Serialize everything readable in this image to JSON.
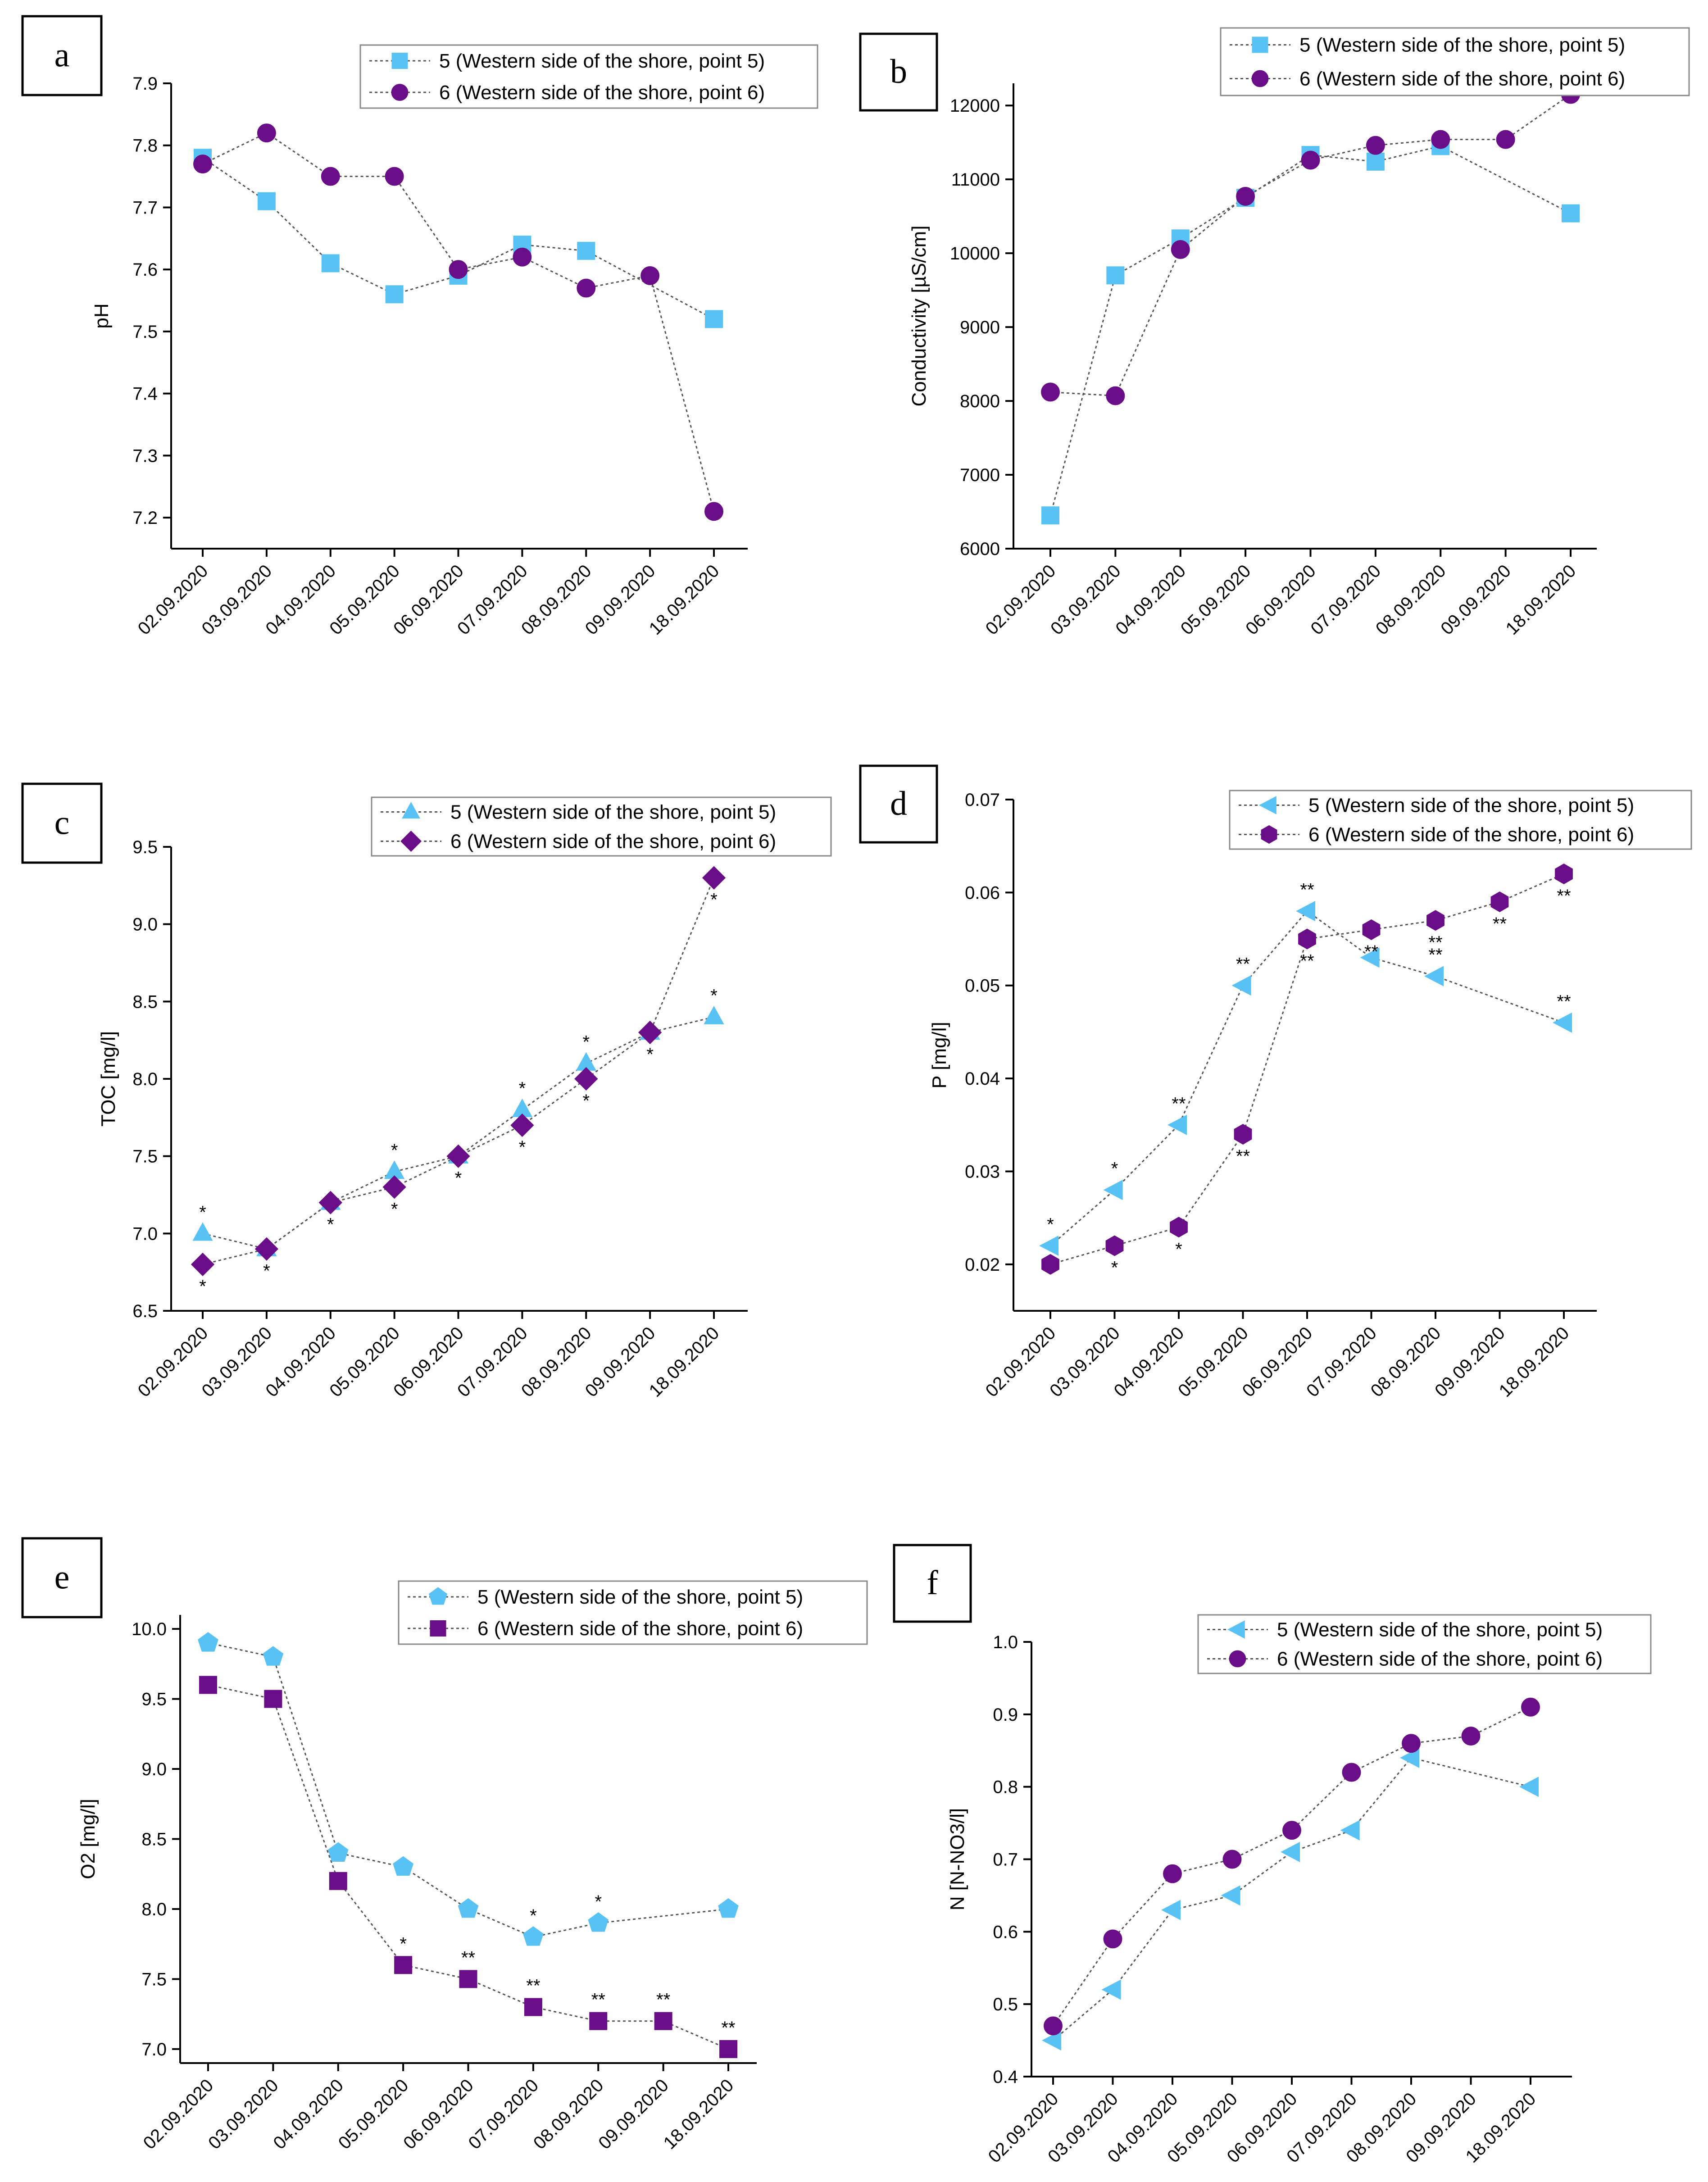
{
  "colors": {
    "series5": "#58c2f5",
    "series6": "#6a0d88",
    "line": "#555555",
    "axis": "#000000"
  },
  "chart_data": [
    {
      "id": "a",
      "panel_label": "a",
      "type": "line",
      "title": "",
      "xlabel": "",
      "ylabel": "pH",
      "categories": [
        "02.09.2020",
        "03.09.2020",
        "04.09.2020",
        "05.09.2020",
        "06.09.2020",
        "07.09.2020",
        "08.09.2020",
        "09.09.2020",
        "18.09.2020"
      ],
      "ylim": [
        7.15,
        7.9
      ],
      "yticks": [
        7.2,
        7.3,
        7.4,
        7.5,
        7.6,
        7.7,
        7.8,
        7.9
      ],
      "ytick_labels": [
        "7.2",
        "7.3",
        "7.4",
        "7.5",
        "7.6",
        "7.7",
        "7.8",
        "7.9"
      ],
      "legend_position": "top-right",
      "series": [
        {
          "name": "5 (Western side of the shore, point 5)",
          "marker": "square",
          "color": "#58c2f5",
          "values": [
            7.78,
            7.71,
            7.61,
            7.56,
            7.59,
            7.64,
            7.63,
            null,
            7.52
          ]
        },
        {
          "name": "6 (Western side of the shore, point 6)",
          "marker": "circle",
          "color": "#6a0d88",
          "values": [
            7.77,
            7.82,
            7.75,
            7.75,
            7.6,
            7.62,
            7.57,
            7.59,
            7.21
          ]
        }
      ]
    },
    {
      "id": "b",
      "panel_label": "b",
      "type": "line",
      "title": "",
      "xlabel": "",
      "ylabel": "Conductivity [µS/cm]",
      "categories": [
        "02.09.2020",
        "03.09.2020",
        "04.09.2020",
        "05.09.2020",
        "06.09.2020",
        "07.09.2020",
        "08.09.2020",
        "09.09.2020",
        "18.09.2020"
      ],
      "ylim": [
        6000,
        12300
      ],
      "yticks": [
        6000,
        7000,
        8000,
        9000,
        10000,
        11000,
        12000
      ],
      "ytick_labels": [
        "6000",
        "7000",
        "8000",
        "9000",
        "10000",
        "11000",
        "12000"
      ],
      "legend_position": "top-right",
      "series": [
        {
          "name": "5 (Western side of the shore, point 5)",
          "marker": "square",
          "color": "#58c2f5",
          "values": [
            6450,
            9700,
            10200,
            10750,
            11330,
            11240,
            11450,
            null,
            10540
          ]
        },
        {
          "name": "6 (Western side of the shore, point 6)",
          "marker": "circle",
          "color": "#6a0d88",
          "values": [
            8120,
            8070,
            10050,
            10770,
            11260,
            11460,
            11540,
            11540,
            12150
          ]
        }
      ]
    },
    {
      "id": "c",
      "panel_label": "c",
      "type": "line",
      "title": "",
      "xlabel": "",
      "ylabel": "TOC [mg/l]",
      "categories": [
        "02.09.2020",
        "03.09.2020",
        "04.09.2020",
        "05.09.2020",
        "06.09.2020",
        "07.09.2020",
        "08.09.2020",
        "09.09.2020",
        "18.09.2020"
      ],
      "ylim": [
        6.5,
        9.5
      ],
      "yticks": [
        6.5,
        7.0,
        7.5,
        8.0,
        8.5,
        9.0,
        9.5
      ],
      "ytick_labels": [
        "6.5",
        "7.0",
        "7.5",
        "8.0",
        "8.5",
        "9.0",
        "9.5"
      ],
      "legend_position": "top-right",
      "series": [
        {
          "name": "5 (Western side of the shore, point 5)",
          "marker": "triangle-up",
          "color": "#58c2f5",
          "values": [
            7.0,
            6.9,
            7.2,
            7.4,
            7.5,
            7.8,
            8.1,
            8.3,
            8.4
          ],
          "annotations": [
            "*",
            "",
            "",
            "*",
            "",
            "*",
            "*",
            "",
            "*"
          ],
          "annotation_side": "above"
        },
        {
          "name": "6 (Western side of the shore, point 6)",
          "marker": "diamond",
          "color": "#6a0d88",
          "values": [
            6.8,
            6.9,
            7.2,
            7.3,
            7.5,
            7.7,
            8.0,
            8.3,
            9.3
          ],
          "annotations": [
            "*",
            "*",
            "*",
            "*",
            "*",
            "*",
            "*",
            "*",
            "*"
          ],
          "annotation_side": "mixed"
        }
      ]
    },
    {
      "id": "d",
      "panel_label": "d",
      "type": "line",
      "title": "",
      "xlabel": "",
      "ylabel": "P [mg/l]",
      "categories": [
        "02.09.2020",
        "03.09.2020",
        "04.09.2020",
        "05.09.2020",
        "06.09.2020",
        "07.09.2020",
        "08.09.2020",
        "09.09.2020",
        "18.09.2020"
      ],
      "ylim": [
        0.015,
        0.07
      ],
      "yticks": [
        0.02,
        0.03,
        0.04,
        0.05,
        0.06,
        0.07
      ],
      "ytick_labels": [
        "0.02",
        "0.03",
        "0.04",
        "0.05",
        "0.06",
        "0.07"
      ],
      "legend_position": "top-right",
      "series": [
        {
          "name": "5 (Western side of the shore, point 5)",
          "marker": "triangle-left",
          "color": "#58c2f5",
          "values": [
            0.022,
            0.028,
            0.035,
            0.05,
            0.058,
            0.053,
            0.051,
            null,
            0.046
          ],
          "annotations": [
            "*",
            "*",
            "**",
            "**",
            "**",
            "**",
            "**",
            "",
            "**"
          ],
          "annotation_side": "mixed"
        },
        {
          "name": "6 (Western side of the shore, point 6)",
          "marker": "hexagon",
          "color": "#6a0d88",
          "values": [
            0.02,
            0.022,
            0.024,
            0.034,
            0.055,
            0.056,
            0.057,
            0.059,
            0.062
          ],
          "annotations": [
            "",
            "*",
            "*",
            "**",
            "**",
            "**",
            "**",
            "**",
            "**"
          ],
          "annotation_side": "mixed"
        }
      ]
    },
    {
      "id": "e",
      "panel_label": "e",
      "type": "line",
      "title": "",
      "xlabel": "",
      "ylabel": "O2 [mg/l]",
      "categories": [
        "02.09.2020",
        "03.09.2020",
        "04.09.2020",
        "05.09.2020",
        "06.09.2020",
        "07.09.2020",
        "08.09.2020",
        "09.09.2020",
        "18.09.2020"
      ],
      "ylim": [
        6.9,
        10.1
      ],
      "yticks": [
        7.0,
        7.5,
        8.0,
        8.5,
        9.0,
        9.5,
        10.0
      ],
      "ytick_labels": [
        "7.0",
        "7.5",
        "8.0",
        "8.5",
        "9.0",
        "9.5",
        "10.0"
      ],
      "legend_position": "top-right",
      "series": [
        {
          "name": "5 (Western side of the shore, point 5)",
          "marker": "pentagon",
          "color": "#58c2f5",
          "values": [
            9.9,
            9.8,
            8.4,
            8.3,
            8.0,
            7.8,
            7.9,
            null,
            8.0
          ],
          "annotations": [
            "",
            "",
            "",
            "",
            "",
            "*",
            "*",
            "",
            ""
          ],
          "annotation_side": "above"
        },
        {
          "name": "6 (Western side of the shore, point 6)",
          "marker": "square",
          "color": "#6a0d88",
          "values": [
            9.6,
            9.5,
            8.2,
            7.6,
            7.5,
            7.3,
            7.2,
            7.2,
            7.0
          ],
          "annotations": [
            "",
            "",
            "",
            "*",
            "**",
            "**",
            "**",
            "**",
            "**"
          ],
          "annotation_side": "above"
        }
      ]
    },
    {
      "id": "f",
      "panel_label": "f",
      "type": "line",
      "title": "",
      "xlabel": "",
      "ylabel": "N [N-NO3/l]",
      "categories": [
        "02.09.2020",
        "03.09.2020",
        "04.09.2020",
        "05.09.2020",
        "06.09.2020",
        "07.09.2020",
        "08.09.2020",
        "09.09.2020",
        "18.09.2020"
      ],
      "ylim": [
        0.4,
        1.0
      ],
      "yticks": [
        0.4,
        0.5,
        0.6,
        0.7,
        0.8,
        0.9,
        1.0
      ],
      "ytick_labels": [
        "0.4",
        "0.5",
        "0.6",
        "0.7",
        "0.8",
        "0.9",
        "1.0"
      ],
      "legend_position": "top-right",
      "series": [
        {
          "name": "5 (Western side of the shore, point 5)",
          "marker": "triangle-left",
          "color": "#58c2f5",
          "values": [
            0.45,
            0.52,
            0.63,
            0.65,
            0.71,
            0.74,
            0.84,
            null,
            0.8
          ]
        },
        {
          "name": "6 (Western side of the shore, point 6)",
          "marker": "circle",
          "color": "#6a0d88",
          "values": [
            0.47,
            0.59,
            0.68,
            0.7,
            0.74,
            0.82,
            0.86,
            0.87,
            0.91
          ]
        }
      ]
    }
  ]
}
